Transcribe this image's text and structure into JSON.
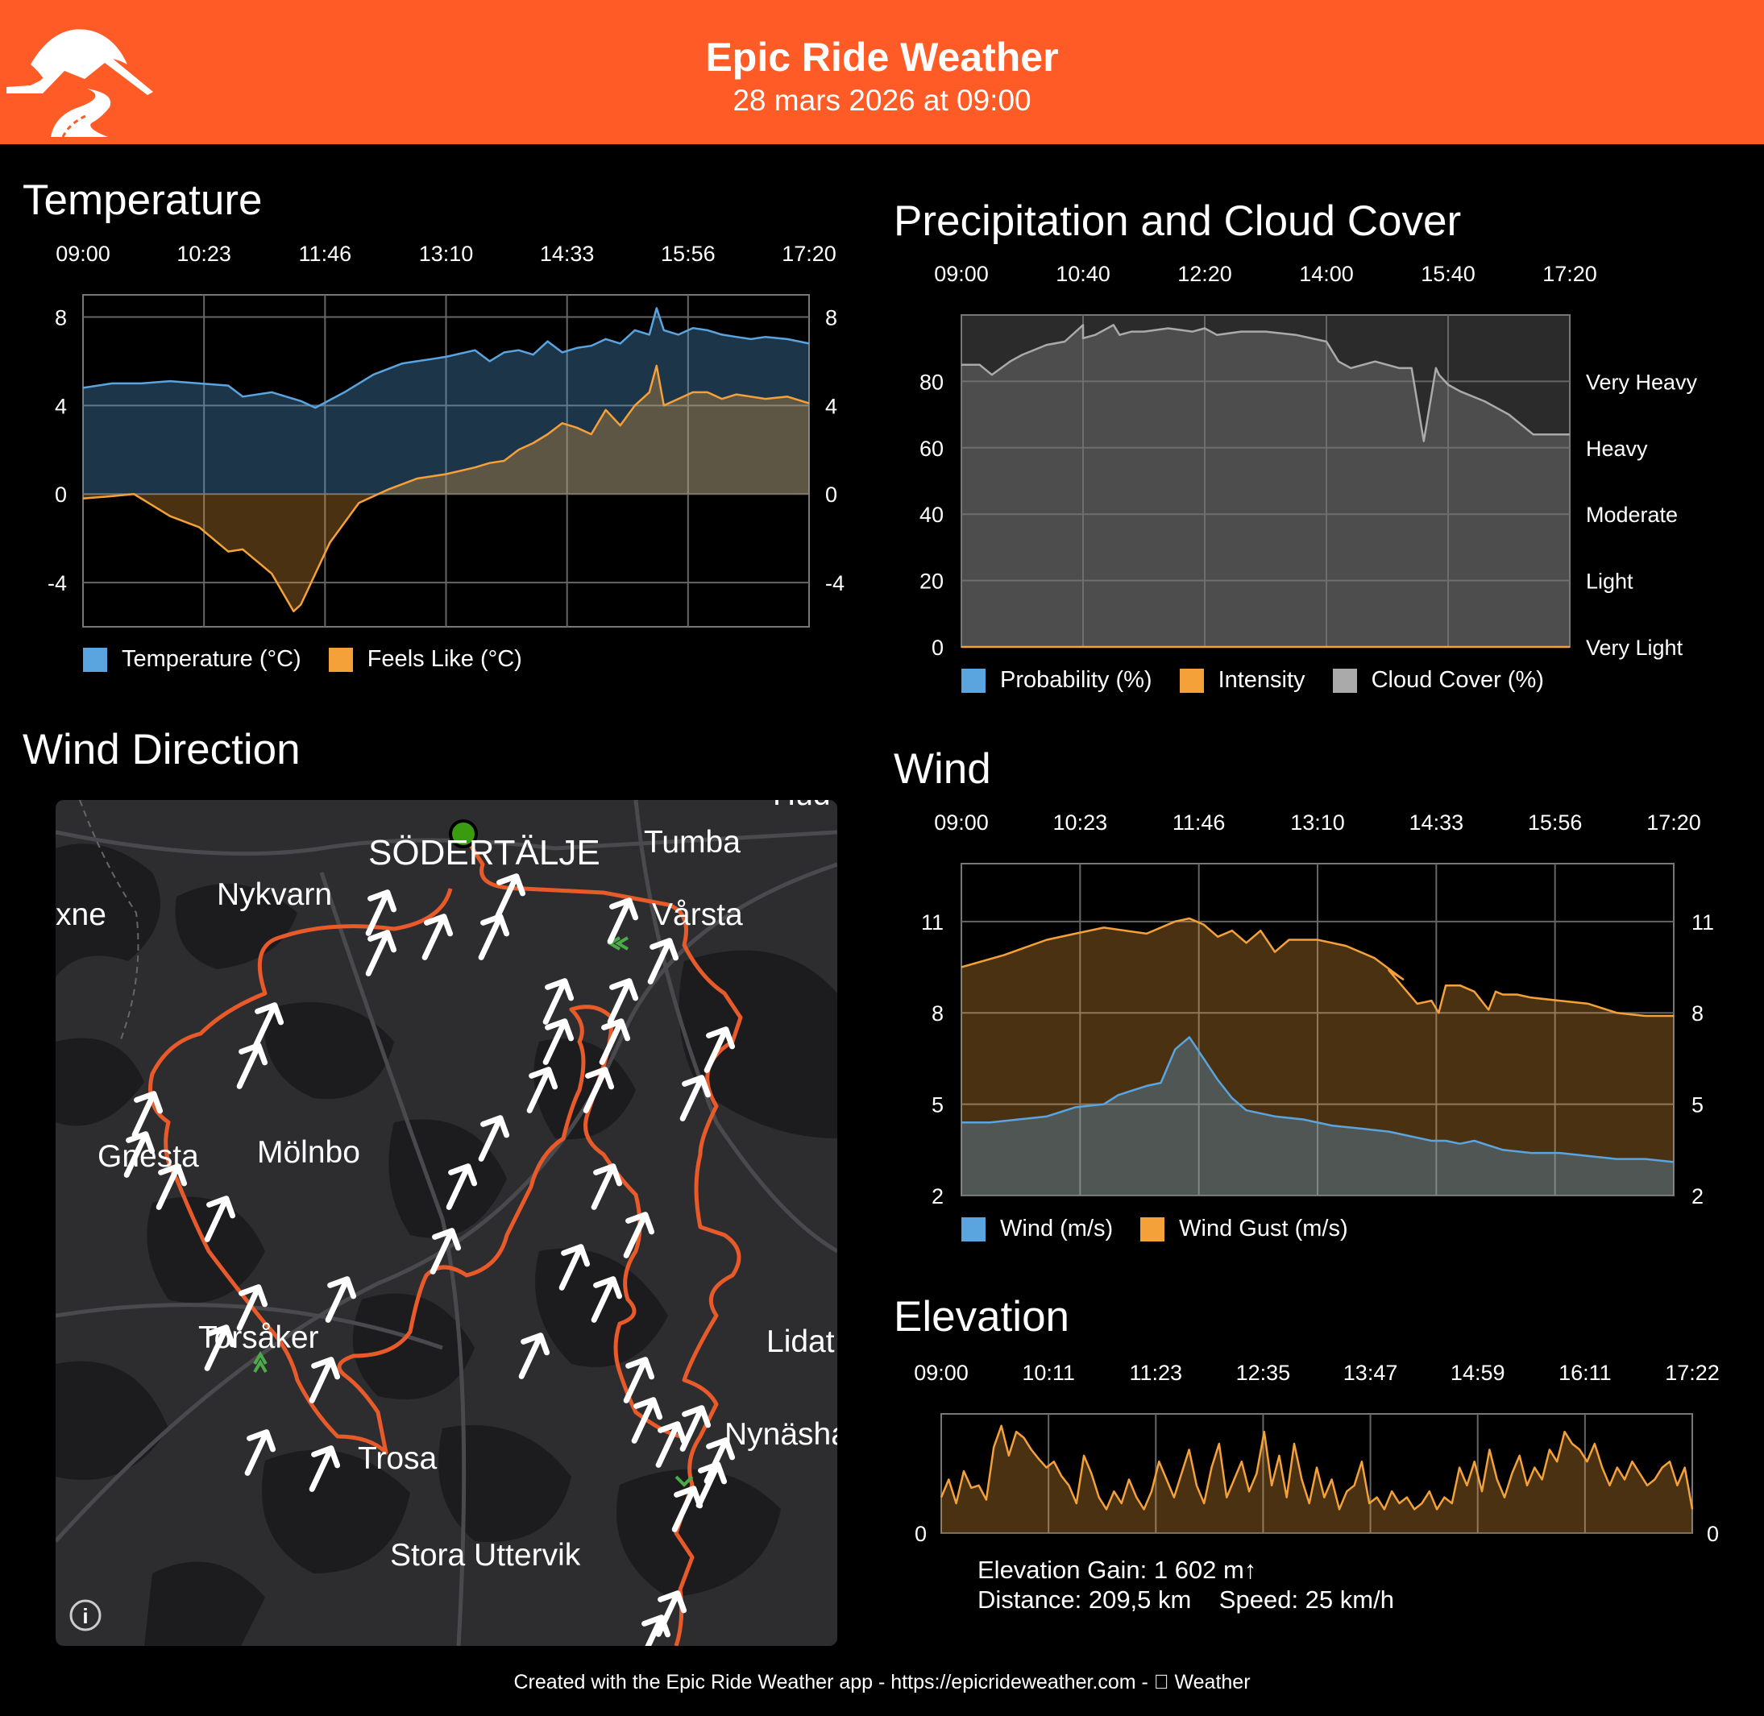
{
  "header": {
    "title": "Epic Ride Weather",
    "subtitle": "28 mars 2026 at 09:00",
    "background_color": "#fe5b27"
  },
  "temperature": {
    "title": "Temperature",
    "legend": [
      {
        "label": "Temperature (°C)",
        "color": "#5aa4e0"
      },
      {
        "label": "Feels Like (°C)",
        "color": "#f5a13a"
      }
    ]
  },
  "precipitation": {
    "title": "Precipitation and Cloud Cover",
    "legend": [
      {
        "label": "Probability (%)",
        "color": "#5aa4e0"
      },
      {
        "label": "Intensity",
        "color": "#f5a13a"
      },
      {
        "label": "Cloud Cover (%)",
        "color": "#aaaaaa"
      }
    ]
  },
  "wind": {
    "title": "Wind",
    "legend": [
      {
        "label": "Wind (m/s)",
        "color": "#5aa4e0"
      },
      {
        "label": "Wind Gust (m/s)",
        "color": "#f5a13a"
      }
    ]
  },
  "wind_direction": {
    "title": "Wind Direction",
    "map_labels": [
      "SÖDERTÄLJE",
      "Tumba",
      "Nykvarn",
      "Vårsta",
      "xne",
      "Gnesta",
      "Mölnbo",
      "Torsåker",
      "Lidat",
      "Trosa",
      "Nynäsha",
      "Stora Uttervik",
      "Hud"
    ],
    "info_icon": "info-icon"
  },
  "elevation": {
    "title": "Elevation",
    "summary_line1": "Elevation Gain: 1 602 m↑",
    "summary_line2": "Distance: 209,5 km    Speed: 25 km/h"
  },
  "footer": "Created with the Epic Ride Weather app - https://epicrideweather.com -  Weather",
  "chart_data": [
    {
      "type": "area",
      "title": "Temperature",
      "x_ticks": [
        "09:00",
        "10:23",
        "11:46",
        "13:10",
        "14:33",
        "15:56",
        "17:20"
      ],
      "ylim": [
        -6,
        9
      ],
      "y_ticks": [
        -4,
        0,
        4,
        8
      ],
      "y_tick_labels": [
        "-4",
        "0",
        "4",
        "8"
      ],
      "grid": true,
      "series": [
        {
          "name": "Temperature (°C)",
          "color": "#5aa4e0",
          "x": [
            0,
            0.04,
            0.08,
            0.12,
            0.16,
            0.2,
            0.22,
            0.26,
            0.3,
            0.32,
            0.36,
            0.4,
            0.44,
            0.48,
            0.5,
            0.54,
            0.56,
            0.58,
            0.6,
            0.62,
            0.64,
            0.66,
            0.68,
            0.7,
            0.72,
            0.74,
            0.76,
            0.78,
            0.79,
            0.8,
            0.82,
            0.84,
            0.86,
            0.88,
            0.9,
            0.92,
            0.94,
            0.97,
            1.0
          ],
          "values": [
            4.8,
            5.0,
            5.0,
            5.1,
            5.0,
            4.9,
            4.4,
            4.6,
            4.2,
            3.9,
            4.6,
            5.4,
            5.9,
            6.1,
            6.2,
            6.5,
            6.0,
            6.4,
            6.5,
            6.3,
            6.9,
            6.4,
            6.6,
            6.7,
            7.0,
            6.8,
            7.4,
            7.2,
            8.4,
            7.4,
            7.2,
            7.5,
            7.4,
            7.2,
            7.1,
            7.0,
            7.1,
            7.0,
            6.8
          ]
        },
        {
          "name": "Feels Like (°C)",
          "color": "#f5a13a",
          "x": [
            0,
            0.04,
            0.07,
            0.08,
            0.12,
            0.16,
            0.2,
            0.22,
            0.26,
            0.29,
            0.3,
            0.34,
            0.38,
            0.42,
            0.46,
            0.5,
            0.54,
            0.56,
            0.58,
            0.6,
            0.62,
            0.64,
            0.66,
            0.68,
            0.7,
            0.72,
            0.74,
            0.76,
            0.78,
            0.79,
            0.8,
            0.82,
            0.84,
            0.86,
            0.88,
            0.9,
            0.92,
            0.94,
            0.97,
            1.0
          ],
          "values": [
            -0.2,
            -0.1,
            0.0,
            -0.2,
            -1.0,
            -1.5,
            -2.6,
            -2.5,
            -3.6,
            -5.3,
            -5.0,
            -2.2,
            -0.4,
            0.2,
            0.7,
            0.9,
            1.2,
            1.4,
            1.5,
            2.0,
            2.3,
            2.7,
            3.2,
            3.0,
            2.7,
            3.8,
            3.1,
            4.0,
            4.6,
            5.8,
            4.0,
            4.3,
            4.6,
            4.6,
            4.3,
            4.5,
            4.4,
            4.3,
            4.4,
            4.1
          ]
        }
      ]
    },
    {
      "type": "area",
      "title": "Precipitation and Cloud Cover",
      "x_ticks": [
        "09:00",
        "10:40",
        "12:20",
        "14:00",
        "15:40",
        "17:20"
      ],
      "ylim": [
        0,
        100
      ],
      "y_ticks": [
        0,
        20,
        40,
        60,
        80
      ],
      "y_tick_labels": [
        "0",
        "20",
        "40",
        "60",
        "80"
      ],
      "right_labels": [
        "Very Light",
        "Light",
        "Moderate",
        "Heavy",
        "Very Heavy"
      ],
      "grid": true,
      "series": [
        {
          "name": "Cloud Cover (%)",
          "color": "#aaaaaa",
          "x": [
            0,
            0.03,
            0.05,
            0.08,
            0.1,
            0.14,
            0.17,
            0.2,
            0.2,
            0.22,
            0.25,
            0.26,
            0.28,
            0.3,
            0.34,
            0.38,
            0.4,
            0.42,
            0.46,
            0.5,
            0.55,
            0.6,
            0.62,
            0.64,
            0.66,
            0.68,
            0.7,
            0.72,
            0.74,
            0.76,
            0.78,
            0.785,
            0.8,
            0.82,
            0.86,
            0.9,
            0.94,
            0.96,
            1.0
          ],
          "values": [
            85,
            85,
            82,
            86,
            88,
            91,
            92,
            97,
            93,
            94,
            97,
            94,
            95,
            95,
            96,
            95,
            96,
            94,
            95,
            95,
            94,
            92,
            86,
            84,
            85,
            86,
            85,
            84,
            84,
            62,
            84,
            82,
            79,
            77,
            74,
            70,
            64,
            64,
            64
          ]
        },
        {
          "name": "Intensity",
          "color": "#f5a13a",
          "x": [
            0,
            1
          ],
          "values": [
            0,
            0
          ]
        }
      ]
    },
    {
      "type": "area",
      "title": "Wind",
      "x_ticks": [
        "09:00",
        "10:23",
        "11:46",
        "13:10",
        "14:33",
        "15:56",
        "17:20"
      ],
      "ylim": [
        2,
        12.9
      ],
      "y_ticks": [
        2,
        5,
        8,
        11
      ],
      "y_tick_labels": [
        "2",
        "5",
        "8",
        "11"
      ],
      "grid": true,
      "series": [
        {
          "name": "Wind Gust (m/s)",
          "color": "#f5a13a",
          "x": [
            0,
            0.06,
            0.12,
            0.16,
            0.2,
            0.26,
            0.3,
            0.32,
            0.34,
            0.36,
            0.38,
            0.4,
            0.42,
            0.44,
            0.46,
            0.5,
            0.54,
            0.58,
            0.62,
            0.6,
            0.6,
            0.64,
            0.66,
            0.67,
            0.68,
            0.7,
            0.72,
            0.74,
            0.75,
            0.76,
            0.78,
            0.8,
            0.84,
            0.88,
            0.92,
            0.96,
            1.0
          ],
          "values": [
            9.5,
            9.9,
            10.4,
            10.6,
            10.8,
            10.6,
            11.0,
            11.1,
            10.9,
            10.5,
            10.7,
            10.3,
            10.7,
            10.0,
            10.4,
            10.4,
            10.2,
            9.8,
            9.1,
            9.4,
            9.4,
            8.3,
            8.4,
            8.0,
            8.9,
            8.9,
            8.7,
            8.1,
            8.7,
            8.6,
            8.6,
            8.5,
            8.4,
            8.3,
            8.0,
            7.9,
            7.9
          ]
        },
        {
          "name": "Wind (m/s)",
          "color": "#5aa4e0",
          "x": [
            0,
            0.04,
            0.08,
            0.12,
            0.16,
            0.2,
            0.22,
            0.26,
            0.28,
            0.3,
            0.32,
            0.34,
            0.36,
            0.38,
            0.4,
            0.44,
            0.48,
            0.52,
            0.56,
            0.6,
            0.62,
            0.64,
            0.66,
            0.68,
            0.7,
            0.72,
            0.76,
            0.8,
            0.84,
            0.88,
            0.92,
            0.96,
            1.0
          ],
          "values": [
            4.4,
            4.4,
            4.5,
            4.6,
            4.9,
            5.0,
            5.3,
            5.6,
            5.7,
            6.8,
            7.2,
            6.5,
            5.8,
            5.2,
            4.8,
            4.6,
            4.5,
            4.3,
            4.2,
            4.1,
            4.0,
            3.9,
            3.8,
            3.8,
            3.7,
            3.8,
            3.5,
            3.4,
            3.4,
            3.3,
            3.2,
            3.2,
            3.1
          ]
        }
      ]
    },
    {
      "type": "area",
      "title": "Elevation",
      "x_ticks": [
        "09:00",
        "10:11",
        "11:23",
        "12:35",
        "13:47",
        "14:59",
        "16:11",
        "17:22"
      ],
      "ylim": [
        0,
        100
      ],
      "y_ticks": [
        0
      ],
      "y_tick_labels": [
        "0"
      ],
      "grid": true,
      "series": [
        {
          "name": "Elevation",
          "color": "#f5a13a",
          "x": [
            0,
            0.01,
            0.02,
            0.03,
            0.04,
            0.05,
            0.06,
            0.07,
            0.08,
            0.09,
            0.1,
            0.11,
            0.12,
            0.13,
            0.14,
            0.15,
            0.16,
            0.17,
            0.18,
            0.19,
            0.2,
            0.21,
            0.22,
            0.23,
            0.24,
            0.25,
            0.26,
            0.27,
            0.28,
            0.29,
            0.3,
            0.31,
            0.32,
            0.33,
            0.34,
            0.35,
            0.36,
            0.37,
            0.38,
            0.39,
            0.4,
            0.41,
            0.42,
            0.43,
            0.44,
            0.45,
            0.46,
            0.47,
            0.48,
            0.49,
            0.5,
            0.51,
            0.52,
            0.53,
            0.54,
            0.55,
            0.56,
            0.57,
            0.58,
            0.59,
            0.6,
            0.61,
            0.62,
            0.63,
            0.64,
            0.65,
            0.66,
            0.67,
            0.68,
            0.69,
            0.7,
            0.71,
            0.72,
            0.73,
            0.74,
            0.75,
            0.76,
            0.77,
            0.78,
            0.79,
            0.8,
            0.81,
            0.82,
            0.83,
            0.84,
            0.85,
            0.86,
            0.87,
            0.88,
            0.89,
            0.9,
            0.91,
            0.92,
            0.93,
            0.94,
            0.95,
            0.96,
            0.97,
            0.98,
            0.99,
            1.0
          ],
          "values": [
            30,
            45,
            25,
            52,
            38,
            40,
            28,
            72,
            90,
            65,
            85,
            80,
            70,
            62,
            55,
            60,
            48,
            40,
            25,
            65,
            50,
            30,
            20,
            35,
            25,
            45,
            30,
            20,
            35,
            60,
            45,
            30,
            50,
            70,
            40,
            25,
            55,
            75,
            30,
            45,
            60,
            35,
            50,
            85,
            40,
            65,
            30,
            75,
            45,
            25,
            55,
            30,
            45,
            20,
            35,
            40,
            60,
            25,
            30,
            20,
            35,
            25,
            30,
            20,
            25,
            35,
            20,
            30,
            25,
            55,
            40,
            60,
            35,
            70,
            45,
            30,
            50,
            65,
            40,
            55,
            45,
            70,
            60,
            85,
            75,
            70,
            60,
            75,
            55,
            40,
            55,
            45,
            60,
            50,
            40,
            45,
            55,
            60,
            40,
            55,
            20
          ]
        }
      ]
    }
  ]
}
